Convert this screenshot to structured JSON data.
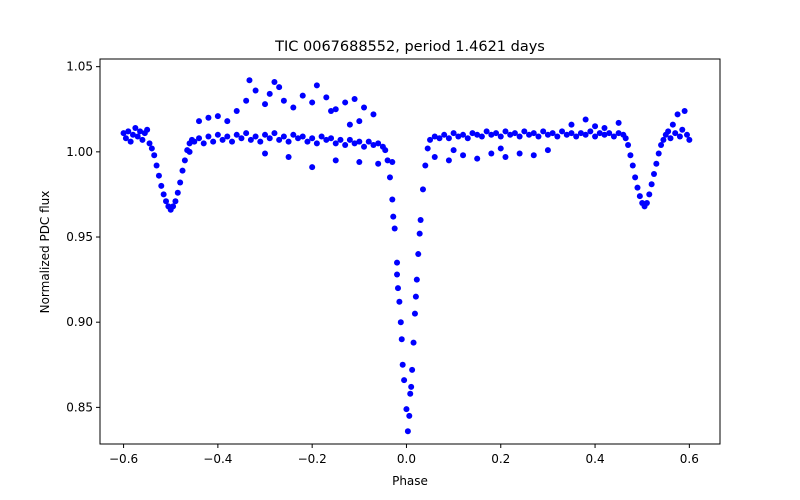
{
  "chart_data": {
    "type": "scatter",
    "title": "TIC 0067688552, period 1.4621 days",
    "xlabel": "Phase",
    "ylabel": "Normalized PDC flux",
    "xlim": [
      -0.65,
      0.665
    ],
    "ylim": [
      0.8285,
      1.0545
    ],
    "x_ticks": [
      -0.6,
      -0.4,
      -0.2,
      0.0,
      0.2,
      0.4,
      0.6
    ],
    "x_tick_labels": [
      "−0.6",
      "−0.4",
      "−0.2",
      "0.0",
      "0.2",
      "0.4",
      "0.6"
    ],
    "y_ticks": [
      0.85,
      0.9,
      0.95,
      1.0,
      1.05
    ],
    "y_tick_labels": [
      "0.85",
      "0.90",
      "0.95",
      "1.00",
      "1.05"
    ],
    "grid": false,
    "marker_color": "#0000ff",
    "series": [
      {
        "name": "flux",
        "points": [
          [
            -0.6,
            1.011
          ],
          [
            -0.595,
            1.008
          ],
          [
            -0.59,
            1.012
          ],
          [
            -0.585,
            1.006
          ],
          [
            -0.58,
            1.01
          ],
          [
            -0.575,
            1.014
          ],
          [
            -0.57,
            1.009
          ],
          [
            -0.565,
            1.012
          ],
          [
            -0.56,
            1.007
          ],
          [
            -0.555,
            1.011
          ],
          [
            -0.55,
            1.013
          ],
          [
            -0.545,
            1.005
          ],
          [
            -0.54,
            1.002
          ],
          [
            -0.535,
            0.998
          ],
          [
            -0.53,
            0.992
          ],
          [
            -0.525,
            0.986
          ],
          [
            -0.52,
            0.98
          ],
          [
            -0.515,
            0.975
          ],
          [
            -0.51,
            0.971
          ],
          [
            -0.505,
            0.968
          ],
          [
            -0.5,
            0.966
          ],
          [
            -0.495,
            0.968
          ],
          [
            -0.49,
            0.971
          ],
          [
            -0.485,
            0.976
          ],
          [
            -0.48,
            0.982
          ],
          [
            -0.475,
            0.989
          ],
          [
            -0.47,
            0.995
          ],
          [
            -0.465,
            1.001
          ],
          [
            -0.46,
            1.005
          ],
          [
            -0.455,
            1.007
          ],
          [
            -0.45,
            1.006
          ],
          [
            -0.44,
            1.008
          ],
          [
            -0.43,
            1.005
          ],
          [
            -0.42,
            1.009
          ],
          [
            -0.41,
            1.006
          ],
          [
            -0.4,
            1.01
          ],
          [
            -0.39,
            1.007
          ],
          [
            -0.38,
            1.009
          ],
          [
            -0.37,
            1.006
          ],
          [
            -0.36,
            1.01
          ],
          [
            -0.35,
            1.008
          ],
          [
            -0.34,
            1.011
          ],
          [
            -0.33,
            1.007
          ],
          [
            -0.32,
            1.009
          ],
          [
            -0.31,
            1.006
          ],
          [
            -0.3,
            1.01
          ],
          [
            -0.29,
            1.008
          ],
          [
            -0.28,
            1.011
          ],
          [
            -0.27,
            1.007
          ],
          [
            -0.26,
            1.009
          ],
          [
            -0.25,
            1.006
          ],
          [
            -0.24,
            1.01
          ],
          [
            -0.23,
            1.008
          ],
          [
            -0.22,
            1.009
          ],
          [
            -0.21,
            1.006
          ],
          [
            -0.2,
            1.008
          ],
          [
            -0.19,
            1.005
          ],
          [
            -0.18,
            1.009
          ],
          [
            -0.17,
            1.007
          ],
          [
            -0.16,
            1.008
          ],
          [
            -0.15,
            1.005
          ],
          [
            -0.14,
            1.007
          ],
          [
            -0.13,
            1.004
          ],
          [
            -0.12,
            1.007
          ],
          [
            -0.11,
            1.005
          ],
          [
            -0.1,
            1.006
          ],
          [
            -0.09,
            1.003
          ],
          [
            -0.08,
            1.006
          ],
          [
            -0.07,
            1.004
          ],
          [
            -0.06,
            1.005
          ],
          [
            -0.05,
            1.003
          ],
          [
            -0.045,
            1.001
          ],
          [
            -0.4,
            1.021
          ],
          [
            -0.38,
            1.018
          ],
          [
            -0.36,
            1.024
          ],
          [
            -0.34,
            1.03
          ],
          [
            -0.333,
            1.042
          ],
          [
            -0.32,
            1.036
          ],
          [
            -0.3,
            1.028
          ],
          [
            -0.29,
            1.034
          ],
          [
            -0.28,
            1.041
          ],
          [
            -0.27,
            1.038
          ],
          [
            -0.26,
            1.03
          ],
          [
            -0.24,
            1.026
          ],
          [
            -0.22,
            1.033
          ],
          [
            -0.2,
            1.029
          ],
          [
            -0.19,
            1.039
          ],
          [
            -0.17,
            1.032
          ],
          [
            -0.15,
            1.025
          ],
          [
            -0.13,
            1.029
          ],
          [
            -0.11,
            1.031
          ],
          [
            -0.09,
            1.026
          ],
          [
            -0.07,
            1.022
          ],
          [
            -0.44,
            1.018
          ],
          [
            -0.42,
            1.02
          ],
          [
            -0.12,
            1.016
          ],
          [
            -0.1,
            1.018
          ],
          [
            -0.16,
            1.024
          ],
          [
            -0.2,
            0.991
          ],
          [
            -0.25,
            0.997
          ],
          [
            -0.15,
            0.995
          ],
          [
            -0.1,
            0.994
          ],
          [
            -0.06,
            0.993
          ],
          [
            -0.03,
            0.994
          ],
          [
            -0.46,
            1.0
          ],
          [
            -0.3,
            0.999
          ],
          [
            -0.04,
            0.995
          ],
          [
            -0.035,
            0.985
          ],
          [
            -0.03,
            0.972
          ],
          [
            -0.025,
            0.955
          ],
          [
            -0.02,
            0.935
          ],
          [
            -0.015,
            0.912
          ],
          [
            -0.01,
            0.89
          ],
          [
            -0.005,
            0.866
          ],
          [
            0.0,
            0.849
          ],
          [
            0.003,
            0.836
          ],
          [
            0.006,
            0.845
          ],
          [
            0.01,
            0.862
          ],
          [
            0.015,
            0.888
          ],
          [
            0.02,
            0.915
          ],
          [
            0.025,
            0.94
          ],
          [
            0.03,
            0.96
          ],
          [
            0.035,
            0.978
          ],
          [
            0.04,
            0.992
          ],
          [
            0.045,
            1.002
          ],
          [
            -0.012,
            0.9
          ],
          [
            -0.008,
            0.875
          ],
          [
            0.008,
            0.858
          ],
          [
            0.012,
            0.872
          ],
          [
            -0.02,
            0.928
          ],
          [
            0.022,
            0.925
          ],
          [
            -0.028,
            0.962
          ],
          [
            0.028,
            0.952
          ],
          [
            0.018,
            0.905
          ],
          [
            -0.018,
            0.92
          ],
          [
            0.05,
            1.007
          ],
          [
            0.06,
            1.009
          ],
          [
            0.07,
            1.008
          ],
          [
            0.08,
            1.01
          ],
          [
            0.09,
            1.008
          ],
          [
            0.1,
            1.011
          ],
          [
            0.11,
            1.009
          ],
          [
            0.12,
            1.01
          ],
          [
            0.13,
            1.008
          ],
          [
            0.14,
            1.011
          ],
          [
            0.15,
            1.01
          ],
          [
            0.16,
            1.009
          ],
          [
            0.17,
            1.012
          ],
          [
            0.18,
            1.01
          ],
          [
            0.19,
            1.011
          ],
          [
            0.2,
            1.009
          ],
          [
            0.21,
            1.012
          ],
          [
            0.22,
            1.01
          ],
          [
            0.23,
            1.011
          ],
          [
            0.24,
            1.009
          ],
          [
            0.25,
            1.012
          ],
          [
            0.26,
            1.01
          ],
          [
            0.27,
            1.011
          ],
          [
            0.28,
            1.009
          ],
          [
            0.29,
            1.012
          ],
          [
            0.3,
            1.01
          ],
          [
            0.31,
            1.011
          ],
          [
            0.32,
            1.009
          ],
          [
            0.33,
            1.012
          ],
          [
            0.34,
            1.01
          ],
          [
            0.35,
            1.011
          ],
          [
            0.36,
            1.009
          ],
          [
            0.37,
            1.011
          ],
          [
            0.38,
            1.01
          ],
          [
            0.39,
            1.012
          ],
          [
            0.4,
            1.009
          ],
          [
            0.41,
            1.011
          ],
          [
            0.42,
            1.01
          ],
          [
            0.43,
            1.011
          ],
          [
            0.44,
            1.009
          ],
          [
            0.45,
            1.011
          ],
          [
            0.46,
            1.01
          ],
          [
            0.465,
            1.008
          ],
          [
            0.06,
            0.997
          ],
          [
            0.09,
            0.995
          ],
          [
            0.12,
            0.998
          ],
          [
            0.15,
            0.996
          ],
          [
            0.18,
            0.999
          ],
          [
            0.21,
            0.997
          ],
          [
            0.24,
            0.999
          ],
          [
            0.27,
            0.998
          ],
          [
            0.1,
            1.001
          ],
          [
            0.2,
            1.002
          ],
          [
            0.3,
            1.001
          ],
          [
            0.35,
            1.016
          ],
          [
            0.4,
            1.015
          ],
          [
            0.45,
            1.017
          ],
          [
            0.38,
            1.019
          ],
          [
            0.42,
            1.014
          ],
          [
            0.47,
            1.004
          ],
          [
            0.475,
            0.998
          ],
          [
            0.48,
            0.992
          ],
          [
            0.485,
            0.985
          ],
          [
            0.49,
            0.979
          ],
          [
            0.495,
            0.974
          ],
          [
            0.5,
            0.97
          ],
          [
            0.505,
            0.968
          ],
          [
            0.51,
            0.97
          ],
          [
            0.515,
            0.975
          ],
          [
            0.52,
            0.981
          ],
          [
            0.525,
            0.987
          ],
          [
            0.53,
            0.993
          ],
          [
            0.535,
            0.999
          ],
          [
            0.54,
            1.004
          ],
          [
            0.545,
            1.007
          ],
          [
            0.55,
            1.01
          ],
          [
            0.555,
            1.012
          ],
          [
            0.56,
            1.008
          ],
          [
            0.565,
            1.016
          ],
          [
            0.57,
            1.011
          ],
          [
            0.575,
            1.022
          ],
          [
            0.58,
            1.009
          ],
          [
            0.585,
            1.013
          ],
          [
            0.59,
            1.024
          ],
          [
            0.595,
            1.01
          ],
          [
            0.6,
            1.007
          ]
        ]
      }
    ]
  }
}
